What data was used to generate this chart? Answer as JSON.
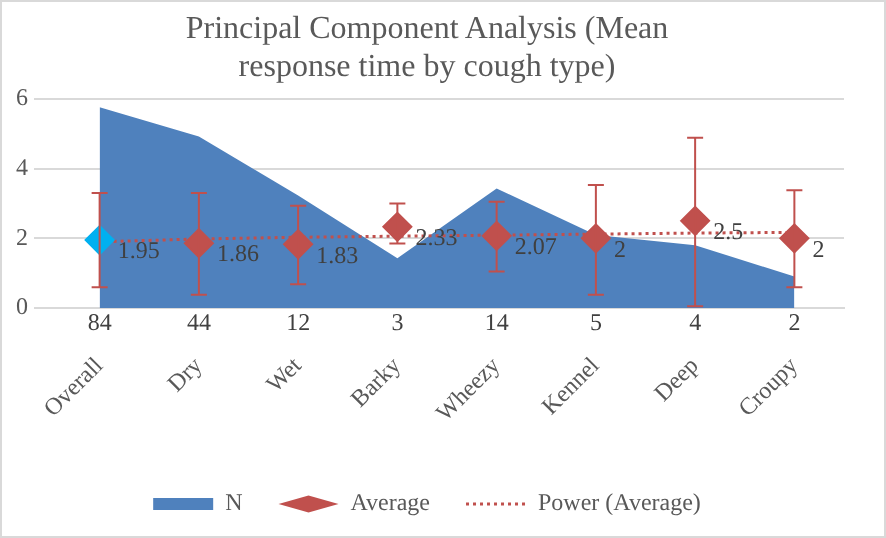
{
  "chart_data": {
    "type": "area",
    "title": "Principal Component Analysis (Mean response time by cough type)",
    "categories": [
      "Overall",
      "Dry",
      "Wet",
      "Barky",
      "Wheezy",
      "Kennel",
      "Deep",
      "Croupy"
    ],
    "series": [
      {
        "name": "N",
        "type": "area",
        "axis": "y2",
        "color": "#4f81bd",
        "values": [
          84,
          44,
          12,
          3,
          14,
          5,
          4,
          2
        ],
        "value_labels": [
          "84",
          "44",
          "12",
          "3",
          "14",
          "5",
          "4",
          "2"
        ]
      },
      {
        "name": "Average",
        "type": "scatter",
        "marker": "diamond",
        "color": "#c0504d",
        "colors": [
          "#00b0f0",
          "#c0504d",
          "#c0504d",
          "#c0504d",
          "#c0504d",
          "#c0504d",
          "#c0504d",
          "#c0504d"
        ],
        "values": [
          1.95,
          1.86,
          1.83,
          2.33,
          2.07,
          2,
          2.5,
          2
        ],
        "value_labels": [
          "1.95",
          "1.86",
          "1.83",
          "2.33",
          "2.07",
          "2",
          "2.5",
          "2"
        ],
        "errors": [
          [
            0.6,
            3.3
          ],
          [
            0.38,
            3.3
          ],
          [
            0.68,
            2.93
          ],
          [
            1.85,
            3.0
          ],
          [
            1.05,
            3.05
          ],
          [
            0.38,
            3.53
          ],
          [
            0.05,
            4.88
          ],
          [
            0.6,
            3.38
          ]
        ]
      },
      {
        "name": "Power (Average)",
        "type": "line",
        "marker": "none",
        "line_style": "dotted",
        "color": "#c0504d",
        "values": [
          1.9,
          1.98,
          2.03,
          2.06,
          2.09,
          2.12,
          2.15,
          2.17
        ]
      }
    ],
    "ylim": [
      0,
      6
    ],
    "yticks": [
      0,
      2,
      4,
      6
    ],
    "log": "y2",
    "y2lim": [
      1,
      101
    ],
    "grid": "y",
    "legend": "bottom"
  }
}
